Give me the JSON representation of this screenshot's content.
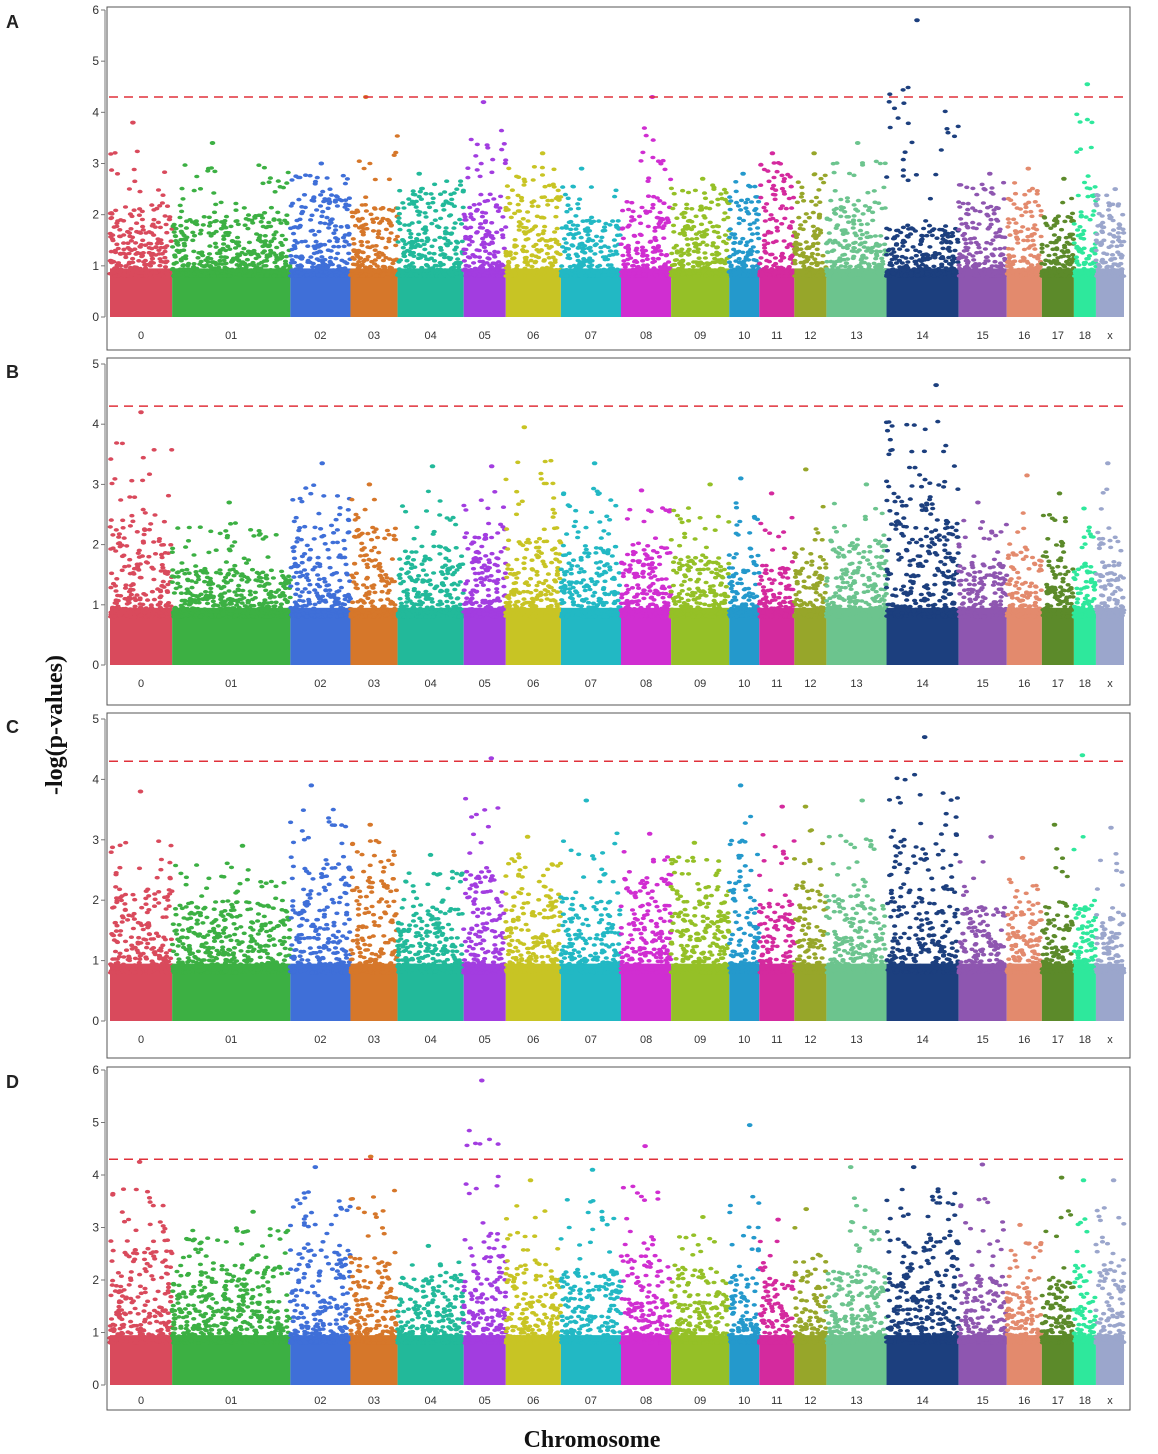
{
  "figure": {
    "ylabel": "-log(p-values)",
    "xlabel": "Chromosome"
  },
  "chart_data": [
    {
      "type": "scatter",
      "panel": "A",
      "ylim": [
        0,
        6
      ],
      "yticks": [
        0,
        1,
        2,
        3,
        4,
        5,
        6
      ],
      "threshold": 4.3,
      "chromosomes": [
        "0",
        "01",
        "02",
        "03",
        "04",
        "05",
        "06",
        "07",
        "08",
        "09",
        "10",
        "11",
        "12",
        "13",
        "14",
        "15",
        "16",
        "17",
        "18",
        "x"
      ],
      "colors": [
        "#d94a5c",
        "#3cb043",
        "#3f6fd8",
        "#d6772a",
        "#22b99a",
        "#a23de0",
        "#c8c424",
        "#22b8c4",
        "#d02ed1",
        "#95c027",
        "#2499cc",
        "#d42a9e",
        "#97a62a",
        "#6cc48e",
        "#1c3f7e",
        "#8e56b0",
        "#e38a6d",
        "#5c8a2a",
        "#2ee89c",
        "#9ba6cc"
      ],
      "peaks": [
        3.8,
        3.4,
        3.0,
        4.3,
        2.8,
        4.2,
        3.2,
        2.9,
        4.3,
        2.7,
        2.8,
        3.2,
        3.2,
        3.4,
        5.8,
        2.8,
        2.9,
        2.7,
        4.55,
        2.5
      ],
      "base": [
        2.2,
        2.0,
        2.4,
        2.2,
        2.4,
        2.4,
        2.4,
        1.9,
        2.4,
        2.3,
        2.3,
        2.6,
        2.1,
        2.3,
        1.8,
        2.3,
        2.4,
        1.9,
        2.7,
        2.2
      ]
    },
    {
      "type": "scatter",
      "panel": "B",
      "ylim": [
        0,
        5
      ],
      "yticks": [
        0,
        1,
        2,
        3,
        4,
        5
      ],
      "threshold": 4.3,
      "chromosomes": [
        "0",
        "01",
        "02",
        "03",
        "04",
        "05",
        "06",
        "07",
        "08",
        "09",
        "10",
        "11",
        "12",
        "13",
        "14",
        "15",
        "16",
        "17",
        "18",
        "x"
      ],
      "colors": [
        "#d94a5c",
        "#3cb043",
        "#3f6fd8",
        "#d6772a",
        "#22b99a",
        "#a23de0",
        "#c8c424",
        "#22b8c4",
        "#d02ed1",
        "#95c027",
        "#2499cc",
        "#d42a9e",
        "#97a62a",
        "#6cc48e",
        "#1c3f7e",
        "#8e56b0",
        "#e38a6d",
        "#5c8a2a",
        "#2ee89c",
        "#9ba6cc"
      ],
      "peaks": [
        4.2,
        2.7,
        3.35,
        3.0,
        3.3,
        3.3,
        3.95,
        3.35,
        2.9,
        3.0,
        3.1,
        2.85,
        3.25,
        3.0,
        4.65,
        2.7,
        3.15,
        2.85,
        2.6,
        3.35
      ],
      "base": [
        2.5,
        1.6,
        2.3,
        2.3,
        2.0,
        2.3,
        2.1,
        2.0,
        2.0,
        1.8,
        1.9,
        1.7,
        1.9,
        2.0,
        3.0,
        1.7,
        1.9,
        1.9,
        1.7,
        2.1
      ]
    },
    {
      "type": "scatter",
      "panel": "C",
      "ylim": [
        0,
        5
      ],
      "yticks": [
        0,
        1,
        2,
        3,
        4,
        5
      ],
      "threshold": 4.3,
      "chromosomes": [
        "0",
        "01",
        "02",
        "03",
        "04",
        "05",
        "06",
        "07",
        "08",
        "09",
        "10",
        "11",
        "12",
        "13",
        "14",
        "15",
        "16",
        "17",
        "18",
        "x"
      ],
      "colors": [
        "#d94a5c",
        "#3cb043",
        "#3f6fd8",
        "#d6772a",
        "#22b99a",
        "#a23de0",
        "#c8c424",
        "#22b8c4",
        "#d02ed1",
        "#95c027",
        "#2499cc",
        "#d42a9e",
        "#97a62a",
        "#6cc48e",
        "#1c3f7e",
        "#8e56b0",
        "#e38a6d",
        "#5c8a2a",
        "#2ee89c",
        "#9ba6cc"
      ],
      "peaks": [
        3.8,
        2.9,
        3.9,
        3.25,
        2.75,
        4.35,
        3.05,
        3.65,
        3.1,
        2.95,
        3.9,
        3.55,
        3.55,
        3.65,
        4.7,
        3.05,
        2.7,
        3.25,
        4.4,
        3.2
      ],
      "base": [
        2.2,
        2.0,
        2.6,
        2.4,
        1.9,
        2.5,
        2.2,
        2.1,
        2.3,
        2.2,
        2.5,
        2.0,
        2.3,
        2.1,
        2.9,
        1.9,
        2.0,
        2.0,
        2.0,
        1.8
      ]
    },
    {
      "type": "scatter",
      "panel": "D",
      "ylim": [
        0,
        6
      ],
      "yticks": [
        0,
        1,
        2,
        3,
        4,
        5,
        6
      ],
      "threshold": 4.3,
      "chromosomes": [
        "0",
        "01",
        "02",
        "03",
        "04",
        "05",
        "06",
        "07",
        "08",
        "09",
        "10",
        "11",
        "12",
        "13",
        "14",
        "15",
        "16",
        "17",
        "18",
        "x"
      ],
      "colors": [
        "#d94a5c",
        "#3cb043",
        "#3f6fd8",
        "#d6772a",
        "#22b99a",
        "#a23de0",
        "#c8c424",
        "#22b8c4",
        "#d02ed1",
        "#95c027",
        "#2499cc",
        "#d42a9e",
        "#97a62a",
        "#6cc48e",
        "#1c3f7e",
        "#8e56b0",
        "#e38a6d",
        "#5c8a2a",
        "#2ee89c",
        "#9ba6cc"
      ],
      "peaks": [
        4.25,
        3.3,
        4.15,
        4.35,
        2.65,
        5.8,
        3.9,
        4.1,
        4.55,
        3.2,
        4.95,
        3.15,
        3.35,
        4.15,
        4.15,
        4.2,
        3.05,
        3.95,
        3.9,
        3.9
      ],
      "base": [
        2.6,
        2.3,
        2.7,
        2.5,
        2.0,
        2.8,
        2.3,
        2.2,
        2.5,
        2.2,
        2.3,
        2.0,
        2.4,
        2.3,
        2.8,
        2.1,
        2.1,
        2.0,
        2.3,
        2.3
      ]
    }
  ]
}
